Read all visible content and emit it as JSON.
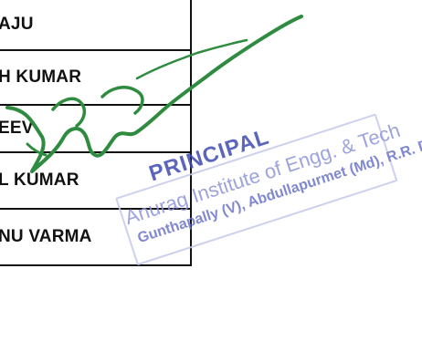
{
  "table": {
    "rows": [
      {
        "name": "AJU"
      },
      {
        "name": "H KUMAR"
      },
      {
        "name": "EEV"
      },
      {
        "name": "L KUMAR"
      },
      {
        "name": "NU VARMA"
      }
    ]
  },
  "stamp": {
    "title": "PRINCIPAL",
    "line2": "Anurag Institute of Engg. & Tech",
    "line3": "Gunthapally (V), Abdullapurmet (Md), R.R. Dist.",
    "color": "#4d57b8"
  },
  "signature": {
    "color": "#2f8b3f"
  }
}
